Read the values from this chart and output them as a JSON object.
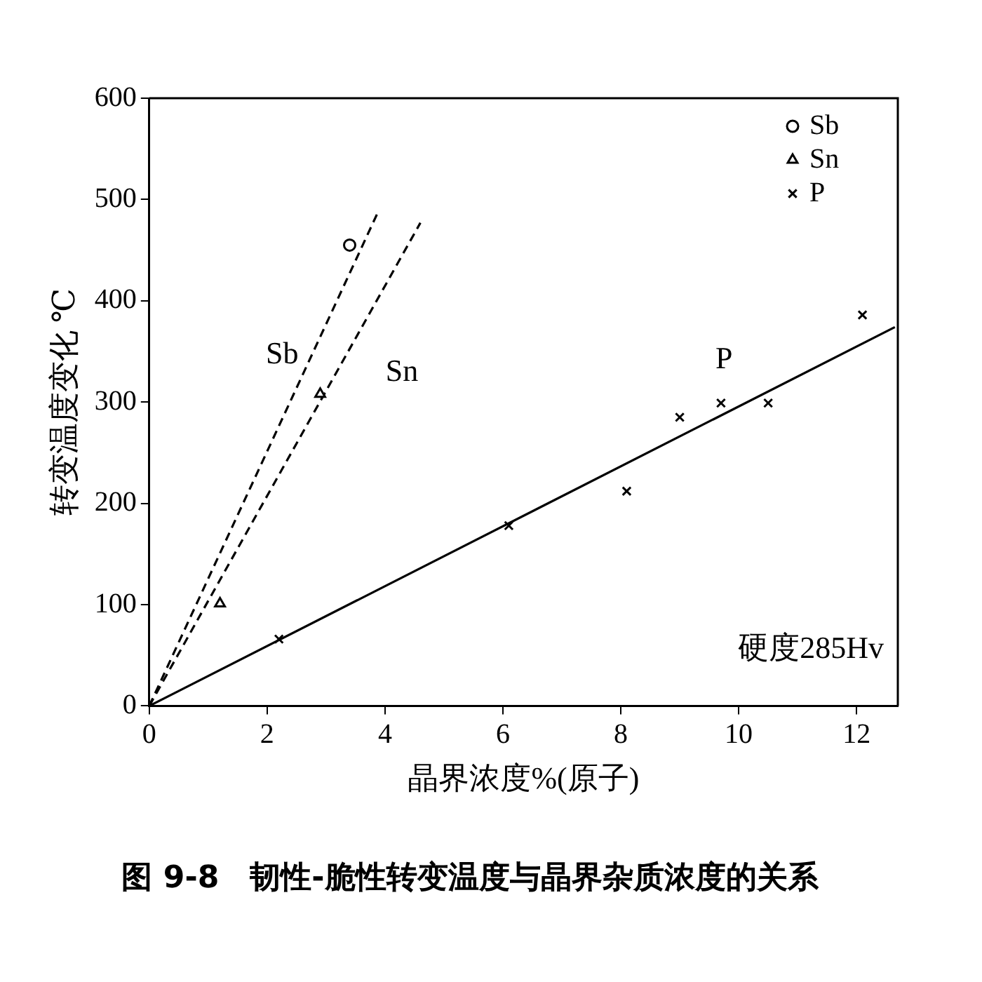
{
  "chart_data": {
    "type": "scatter",
    "title": "图 9-8　韧性-脆性转变温度与晶界杂质浓度的关系",
    "xlabel": "晶界浓度%(原子)",
    "ylabel": "转变温度变化 ℃",
    "xlim": [
      0,
      12.7
    ],
    "ylim": [
      0,
      600
    ],
    "xticks": [
      0,
      2,
      4,
      6,
      8,
      10,
      12
    ],
    "yticks": [
      0,
      100,
      200,
      300,
      400,
      500,
      600
    ],
    "grid": false,
    "legend": "top right",
    "series": [
      {
        "name": "Sb",
        "marker": "circle",
        "color": "#000000",
        "x": [
          3.4
        ],
        "values": [
          455
        ]
      },
      {
        "name": "Sn",
        "marker": "triangle",
        "color": "#000000",
        "x": [
          1.2,
          2.9
        ],
        "values": [
          101,
          308
        ]
      },
      {
        "name": "P",
        "marker": "cross",
        "color": "#000000",
        "x": [
          2.2,
          6.1,
          8.1,
          9.0,
          9.7,
          10.5,
          12.1
        ],
        "values": [
          66,
          178,
          212,
          285,
          299,
          299,
          386
        ]
      },
      {
        "type": "line",
        "color": "#000000",
        "line_style": "dashed",
        "x": [
          0,
          3.9
        ],
        "values": [
          0,
          490
        ]
      },
      {
        "type": "line",
        "color": "#000000",
        "line_style": "dashed",
        "x": [
          0,
          4.6
        ],
        "values": [
          0,
          477
        ]
      },
      {
        "type": "line",
        "color": "#000000",
        "line_style": "solid",
        "x": [
          0,
          12.65
        ],
        "values": [
          0,
          374
        ]
      }
    ],
    "annotations": [
      "Sb",
      "Sn",
      "P",
      "硬度285Hv"
    ]
  }
}
